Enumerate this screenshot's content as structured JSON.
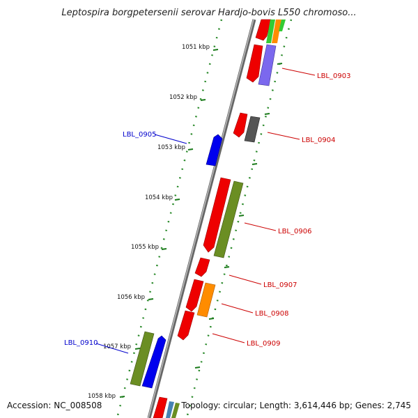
{
  "title": "Leptospira borgpetersenii serovar Hardjo-bovis L550 chromoso...",
  "accession": "Accession: NC_008508",
  "topology": "Topology: circular; Length: 3,614,446 bp; Genes: 2,745",
  "ticks": [
    "1051 kbp",
    "1052 kbp",
    "1053 kbp",
    "1054 kbp",
    "1055 kbp",
    "1056 kbp",
    "1057 kbp",
    "1058 kbp"
  ],
  "gene_labels": {
    "reverse": [
      "LBL_0905",
      "LBL_0910"
    ],
    "forward": [
      "LBL_0903",
      "LBL_0904",
      "LBL_0906",
      "LBL_0907",
      "LBL_0908",
      "LBL_0909"
    ]
  },
  "colors": {
    "gene": "#ee0000",
    "cog_green": "#6b8e23",
    "cog_blue": "#0000ee",
    "cog_orange": "#ff8c00",
    "cog_purple": "#7b68ee",
    "cog_gray": "#555555",
    "cog_lime": "#33cc33",
    "forward_label": "#cc0000",
    "reverse_label": "#0000cc",
    "backbone": "#888888",
    "tick": "#1a7a1a"
  }
}
